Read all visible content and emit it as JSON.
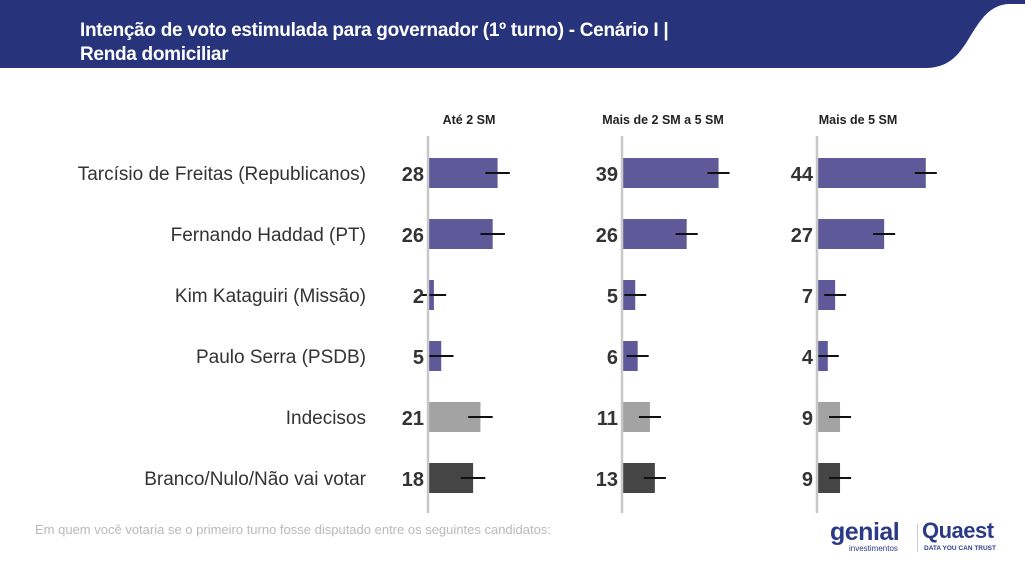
{
  "header": {
    "title_line1": "Intenção de voto estimulada para governador (1º turno) - Cenário I |",
    "title_line2": "Renda domiciliar",
    "color": "#27337A"
  },
  "footer": {
    "question": "Em quem você votaria se o primeiro turno fosse disputado entre os seguintes candidatos:",
    "logo_genial": "genial",
    "logo_genial_sub": "investimentos",
    "logo_quaest": "Quaest",
    "logo_quaest_sub": "DATA YOU CAN TRUST"
  },
  "chart_data": {
    "type": "bar",
    "orientation": "horizontal",
    "title": "Intenção de voto estimulada para governador (1º turno) - Cenário I | Renda domiciliar",
    "categories": [
      "Tarcísio de Freitas (Republicanos)",
      "Fernando Haddad (PT)",
      "Kim Kataguiri (Missão)",
      "Paulo Serra (PSDB)",
      "Indecisos",
      "Branco/Nulo/Não vai votar"
    ],
    "category_colors": [
      "#5E5A99",
      "#5E5A99",
      "#5E5A99",
      "#5E5A99",
      "#A3A3A3",
      "#454545"
    ],
    "series": [
      {
        "name": "Até 2 SM",
        "values": [
          28,
          26,
          2,
          5,
          21,
          18
        ],
        "error_margin": 5
      },
      {
        "name": "Mais de 2 SM a 5 SM",
        "values": [
          39,
          26,
          5,
          6,
          11,
          13
        ],
        "error_margin": 4.5
      },
      {
        "name": "Mais de 5 SM",
        "values": [
          44,
          27,
          7,
          4,
          9,
          9
        ],
        "error_margin": 4.5
      }
    ],
    "xlim": [
      0,
      60
    ],
    "grid": false,
    "legend": "none"
  }
}
